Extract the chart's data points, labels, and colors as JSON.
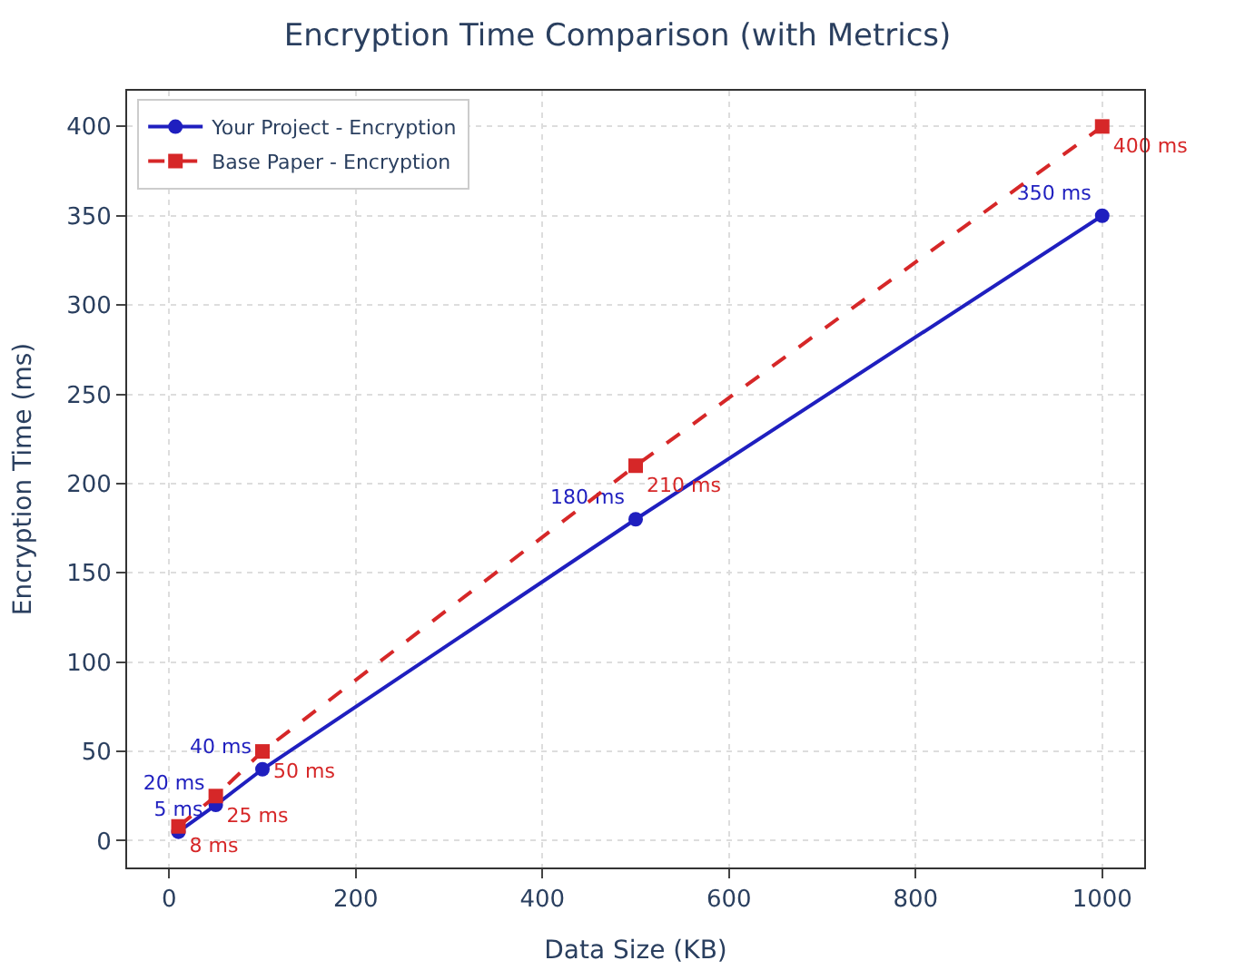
{
  "chart_data": {
    "type": "line",
    "title": "Encryption Time Comparison (with Metrics)",
    "xlabel": "Data Size (KB)",
    "ylabel": "Encryption Time (ms)",
    "x": [
      10,
      50,
      100,
      500,
      1000
    ],
    "series": [
      {
        "name": "Your Project - Encryption",
        "color": "#1f1fbf",
        "values": [
          5,
          20,
          40,
          180,
          350
        ],
        "value_labels": [
          "5 ms",
          "20 ms",
          "40 ms",
          "180 ms",
          "350 ms"
        ],
        "marker": "circle",
        "line_style": "solid"
      },
      {
        "name": "Base Paper - Encryption",
        "color": "#d62728",
        "values": [
          8,
          25,
          50,
          210,
          400
        ],
        "value_labels": [
          "8 ms",
          "25 ms",
          "50 ms",
          "210 ms",
          "400 ms"
        ],
        "marker": "square",
        "line_style": "dashed"
      }
    ],
    "xlim": [
      -45,
      1045
    ],
    "ylim": [
      -15,
      420
    ],
    "xticks": [
      0,
      200,
      400,
      600,
      800,
      1000
    ],
    "yticks": [
      0,
      50,
      100,
      150,
      200,
      250,
      300,
      350,
      400
    ],
    "grid": true,
    "legend": "top left"
  }
}
